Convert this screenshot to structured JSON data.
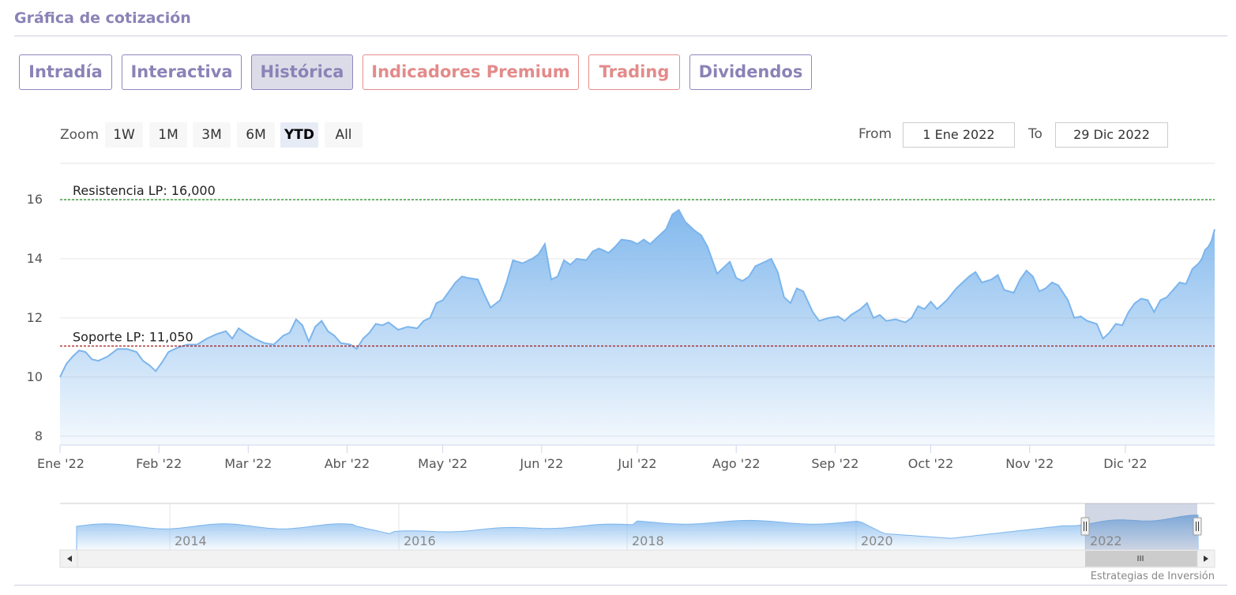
{
  "section_title": "Gráfica de cotización",
  "tabs": [
    {
      "label": "Intradía",
      "premium": false,
      "active": false
    },
    {
      "label": "Interactiva",
      "premium": false,
      "active": false
    },
    {
      "label": "Histórica",
      "premium": false,
      "active": true
    },
    {
      "label": "Indicadores Premium",
      "premium": true,
      "active": false
    },
    {
      "label": "Trading",
      "premium": true,
      "active": false
    },
    {
      "label": "Dividendos",
      "premium": false,
      "active": false
    }
  ],
  "range_selector": {
    "zoom_label": "Zoom",
    "buttons": [
      "1W",
      "1M",
      "3M",
      "6M",
      "YTD",
      "All"
    ],
    "selected": "YTD",
    "from_label": "From",
    "from_value": "1 Ene 2022",
    "to_label": "To",
    "to_value": "29 Dic 2022"
  },
  "colors": {
    "line": "#7cb5ec",
    "resistance": "#1a8a1a",
    "support": "#a31515",
    "accent": "#8a83b8",
    "premium": "#e38a8a"
  },
  "credits": "Estrategias de Inversión",
  "chart_data": {
    "type": "area",
    "x_start": "2022-01-01",
    "x_end": "2022-12-29",
    "x_ticks": [
      {
        "label": "Ene '22",
        "date": "2022-01-01"
      },
      {
        "label": "Feb '22",
        "date": "2022-02-01"
      },
      {
        "label": "Mar '22",
        "date": "2022-03-01"
      },
      {
        "label": "Abr '22",
        "date": "2022-04-01"
      },
      {
        "label": "May '22",
        "date": "2022-05-01"
      },
      {
        "label": "Jun '22",
        "date": "2022-06-01"
      },
      {
        "label": "Jul '22",
        "date": "2022-07-01"
      },
      {
        "label": "Ago '22",
        "date": "2022-08-01"
      },
      {
        "label": "Sep '22",
        "date": "2022-09-01"
      },
      {
        "label": "Oct '22",
        "date": "2022-10-01"
      },
      {
        "label": "Nov '22",
        "date": "2022-11-01"
      },
      {
        "label": "Dic '22",
        "date": "2022-12-01"
      }
    ],
    "y_ticks": [
      8,
      10,
      12,
      14,
      16
    ],
    "ylim": [
      7.7,
      16.4
    ],
    "grid": true,
    "plot_lines": [
      {
        "label": "Resistencia LP: 16,000",
        "value": 16.0,
        "color": "#1a8a1a"
      },
      {
        "label": "Soporte LP: 11,050",
        "value": 11.05,
        "color": "#a31515"
      }
    ],
    "series": [
      {
        "points": [
          [
            "2022-01-01",
            10.0
          ],
          [
            "2022-01-03",
            10.45
          ],
          [
            "2022-01-05",
            10.7
          ],
          [
            "2022-01-07",
            10.9
          ],
          [
            "2022-01-09",
            10.85
          ],
          [
            "2022-01-11",
            10.6
          ],
          [
            "2022-01-13",
            10.55
          ],
          [
            "2022-01-16",
            10.7
          ],
          [
            "2022-01-19",
            10.95
          ],
          [
            "2022-01-22",
            10.95
          ],
          [
            "2022-01-25",
            10.85
          ],
          [
            "2022-01-27",
            10.55
          ],
          [
            "2022-01-29",
            10.4
          ],
          [
            "2022-01-31",
            10.2
          ],
          [
            "2022-02-02",
            10.5
          ],
          [
            "2022-02-04",
            10.85
          ],
          [
            "2022-02-07",
            11.0
          ],
          [
            "2022-02-10",
            11.1
          ],
          [
            "2022-02-13",
            11.1
          ],
          [
            "2022-02-16",
            11.3
          ],
          [
            "2022-02-19",
            11.45
          ],
          [
            "2022-02-22",
            11.55
          ],
          [
            "2022-02-24",
            11.3
          ],
          [
            "2022-02-26",
            11.65
          ],
          [
            "2022-02-28",
            11.5
          ],
          [
            "2022-03-03",
            11.3
          ],
          [
            "2022-03-06",
            11.15
          ],
          [
            "2022-03-09",
            11.1
          ],
          [
            "2022-03-12",
            11.4
          ],
          [
            "2022-03-14",
            11.5
          ],
          [
            "2022-03-16",
            11.95
          ],
          [
            "2022-03-18",
            11.75
          ],
          [
            "2022-03-20",
            11.2
          ],
          [
            "2022-03-22",
            11.7
          ],
          [
            "2022-03-24",
            11.9
          ],
          [
            "2022-03-26",
            11.55
          ],
          [
            "2022-03-28",
            11.4
          ],
          [
            "2022-03-30",
            11.15
          ],
          [
            "2022-04-02",
            11.1
          ],
          [
            "2022-04-04",
            10.95
          ],
          [
            "2022-04-06",
            11.3
          ],
          [
            "2022-04-08",
            11.5
          ],
          [
            "2022-04-10",
            11.8
          ],
          [
            "2022-04-12",
            11.75
          ],
          [
            "2022-04-14",
            11.85
          ],
          [
            "2022-04-17",
            11.6
          ],
          [
            "2022-04-20",
            11.7
          ],
          [
            "2022-04-23",
            11.65
          ],
          [
            "2022-04-25",
            11.9
          ],
          [
            "2022-04-27",
            12.0
          ],
          [
            "2022-04-29",
            12.5
          ],
          [
            "2022-05-01",
            12.6
          ],
          [
            "2022-05-03",
            12.9
          ],
          [
            "2022-05-05",
            13.2
          ],
          [
            "2022-05-07",
            13.4
          ],
          [
            "2022-05-09",
            13.35
          ],
          [
            "2022-05-12",
            13.3
          ],
          [
            "2022-05-14",
            12.8
          ],
          [
            "2022-05-16",
            12.35
          ],
          [
            "2022-05-19",
            12.6
          ],
          [
            "2022-05-21",
            13.2
          ],
          [
            "2022-05-23",
            13.95
          ],
          [
            "2022-05-26",
            13.85
          ],
          [
            "2022-05-29",
            14.0
          ],
          [
            "2022-05-31",
            14.15
          ],
          [
            "2022-06-02",
            14.5
          ],
          [
            "2022-06-04",
            13.3
          ],
          [
            "2022-06-06",
            13.4
          ],
          [
            "2022-06-08",
            13.95
          ],
          [
            "2022-06-10",
            13.8
          ],
          [
            "2022-06-12",
            14.0
          ],
          [
            "2022-06-15",
            13.95
          ],
          [
            "2022-06-17",
            14.25
          ],
          [
            "2022-06-19",
            14.35
          ],
          [
            "2022-06-22",
            14.2
          ],
          [
            "2022-06-24",
            14.4
          ],
          [
            "2022-06-26",
            14.65
          ],
          [
            "2022-06-29",
            14.6
          ],
          [
            "2022-07-01",
            14.5
          ],
          [
            "2022-07-03",
            14.65
          ],
          [
            "2022-07-05",
            14.5
          ],
          [
            "2022-07-07",
            14.7
          ],
          [
            "2022-07-10",
            15.0
          ],
          [
            "2022-07-12",
            15.5
          ],
          [
            "2022-07-14",
            15.65
          ],
          [
            "2022-07-16",
            15.25
          ],
          [
            "2022-07-19",
            14.95
          ],
          [
            "2022-07-21",
            14.8
          ],
          [
            "2022-07-23",
            14.4
          ],
          [
            "2022-07-26",
            13.5
          ],
          [
            "2022-07-28",
            13.7
          ],
          [
            "2022-07-30",
            13.9
          ],
          [
            "2022-08-01",
            13.35
          ],
          [
            "2022-08-03",
            13.25
          ],
          [
            "2022-08-05",
            13.4
          ],
          [
            "2022-08-07",
            13.75
          ],
          [
            "2022-08-09",
            13.85
          ],
          [
            "2022-08-12",
            14.0
          ],
          [
            "2022-08-14",
            13.55
          ],
          [
            "2022-08-16",
            12.7
          ],
          [
            "2022-08-18",
            12.5
          ],
          [
            "2022-08-20",
            13.0
          ],
          [
            "2022-08-22",
            12.9
          ],
          [
            "2022-08-25",
            12.2
          ],
          [
            "2022-08-27",
            11.9
          ],
          [
            "2022-08-30",
            12.0
          ],
          [
            "2022-09-02",
            12.05
          ],
          [
            "2022-09-04",
            11.9
          ],
          [
            "2022-09-06",
            12.1
          ],
          [
            "2022-09-09",
            12.3
          ],
          [
            "2022-09-11",
            12.5
          ],
          [
            "2022-09-13",
            12.0
          ],
          [
            "2022-09-15",
            12.1
          ],
          [
            "2022-09-17",
            11.9
          ],
          [
            "2022-09-20",
            11.95
          ],
          [
            "2022-09-23",
            11.85
          ],
          [
            "2022-09-25",
            12.0
          ],
          [
            "2022-09-27",
            12.4
          ],
          [
            "2022-09-29",
            12.3
          ],
          [
            "2022-10-01",
            12.55
          ],
          [
            "2022-10-03",
            12.3
          ],
          [
            "2022-10-06",
            12.6
          ],
          [
            "2022-10-09",
            13.0
          ],
          [
            "2022-10-11",
            13.2
          ],
          [
            "2022-10-13",
            13.4
          ],
          [
            "2022-10-15",
            13.55
          ],
          [
            "2022-10-17",
            13.2
          ],
          [
            "2022-10-20",
            13.3
          ],
          [
            "2022-10-22",
            13.45
          ],
          [
            "2022-10-24",
            12.95
          ],
          [
            "2022-10-27",
            12.85
          ],
          [
            "2022-10-29",
            13.3
          ],
          [
            "2022-10-31",
            13.6
          ],
          [
            "2022-11-02",
            13.4
          ],
          [
            "2022-11-04",
            12.9
          ],
          [
            "2022-11-06",
            13.0
          ],
          [
            "2022-11-08",
            13.2
          ],
          [
            "2022-11-10",
            13.1
          ],
          [
            "2022-11-13",
            12.6
          ],
          [
            "2022-11-15",
            12.0
          ],
          [
            "2022-11-17",
            12.05
          ],
          [
            "2022-11-19",
            11.9
          ],
          [
            "2022-11-22",
            11.8
          ],
          [
            "2022-11-24",
            11.3
          ],
          [
            "2022-11-26",
            11.5
          ],
          [
            "2022-11-28",
            11.8
          ],
          [
            "2022-11-30",
            11.75
          ],
          [
            "2022-12-02",
            12.2
          ],
          [
            "2022-12-04",
            12.5
          ],
          [
            "2022-12-06",
            12.65
          ],
          [
            "2022-12-08",
            12.6
          ],
          [
            "2022-12-10",
            12.2
          ],
          [
            "2022-12-12",
            12.6
          ],
          [
            "2022-12-14",
            12.7
          ],
          [
            "2022-12-16",
            12.95
          ],
          [
            "2022-12-18",
            13.2
          ],
          [
            "2022-12-20",
            13.15
          ],
          [
            "2022-12-22",
            13.65
          ],
          [
            "2022-12-24",
            13.85
          ],
          [
            "2022-12-25",
            14.0
          ],
          [
            "2022-12-26",
            14.3
          ],
          [
            "2022-12-27",
            14.4
          ],
          [
            "2022-12-28",
            14.6
          ],
          [
            "2022-12-29",
            15.0
          ]
        ]
      }
    ],
    "navigator": {
      "labels": [
        "2014",
        "2016",
        "2018",
        "2020",
        "2022"
      ]
    }
  }
}
